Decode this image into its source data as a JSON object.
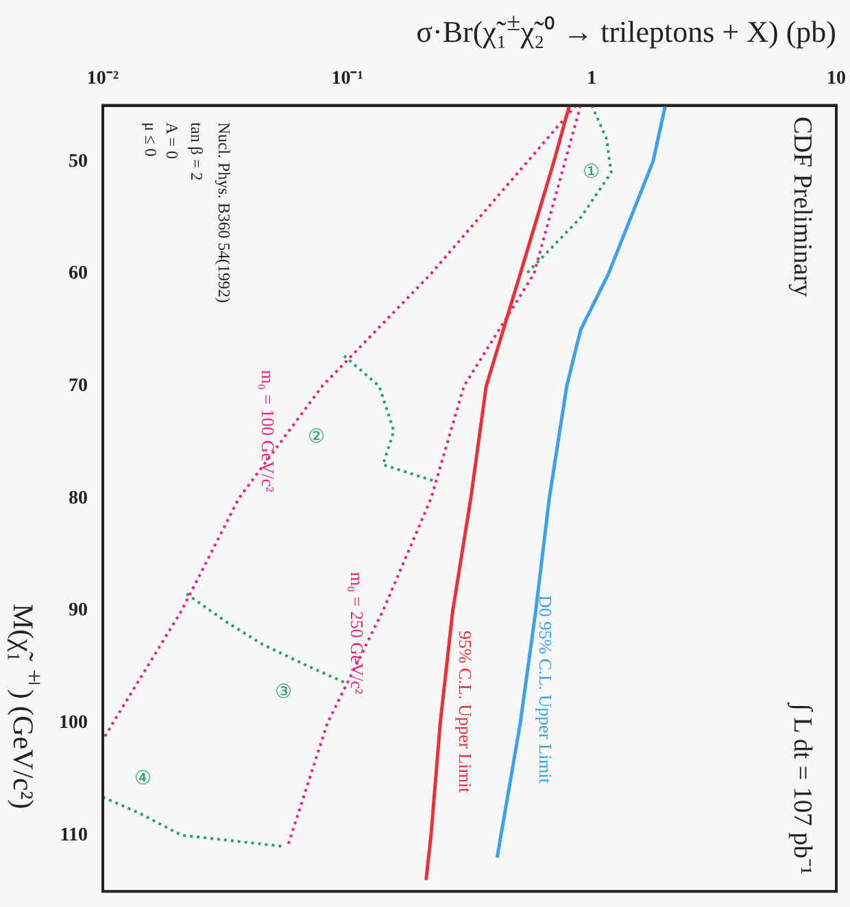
{
  "chart_data": {
    "type": "line",
    "xlabel": "σ·Br(χ̃₁$^{±}$χ̃₂⁰ → trileptons + X) (pb)",
    "ylabel": "M(χ̃₁$^{±}$) (GeV/c²)",
    "xlim": [
      0.01,
      10
    ],
    "xticks": [
      {
        "value": 0.01,
        "label": "10⁻²"
      },
      {
        "value": 0.1,
        "label": "10⁻¹"
      },
      1,
      10
    ],
    "ylim": [
      115,
      45
    ],
    "yticks": [
      50,
      60,
      70,
      80,
      90,
      100,
      110
    ],
    "log": "x",
    "grid": false,
    "legend": false,
    "series": [
      {
        "name": "95% C.L. Upper Limit",
        "color": "#e8313a",
        "line_style": "solid",
        "x": [
          0.81,
          0.7,
          0.51,
          0.37,
          0.32,
          0.27,
          0.24,
          0.22,
          0.21
        ],
        "values": [
          45,
          50,
          60,
          70,
          80,
          90,
          100,
          110,
          114
        ]
      },
      {
        "name": "D0 95% C.L. Upper Limit",
        "color": "#3ea0e8",
        "line_style": "solid",
        "x": [
          2.0,
          1.78,
          1.17,
          0.9,
          0.79,
          0.67,
          0.59,
          0.51,
          0.41
        ],
        "values": [
          45,
          50,
          60,
          65,
          70,
          80,
          90,
          100,
          112
        ]
      },
      {
        "name": "m₀ = 100 GeV/c²",
        "color": "#e8247f",
        "line_style": "dotted",
        "x": [
          0.86,
          0.22,
          0.079,
          0.036,
          0.021,
          0.011,
          0.01
        ],
        "values": [
          45,
          60,
          70,
          80,
          90,
          100,
          101.5
        ]
      },
      {
        "name": "m₀ = 250 GeV/c²",
        "color": "#e8247f",
        "line_style": "dotted",
        "x": [
          0.9,
          0.58,
          0.3,
          0.22,
          0.14,
          0.083,
          0.057
        ],
        "values": [
          45,
          60,
          70,
          80,
          90,
          100,
          111
        ]
      },
      {
        "color": "#2e9e6a",
        "line_style": "dotted",
        "x": [
          1.0,
          1.15,
          1.2,
          0.9,
          0.54
        ],
        "values": [
          45,
          48,
          51,
          55,
          60
        ]
      },
      {
        "color": "#2e9e6a",
        "line_style": "dotted",
        "x": [
          0.097,
          0.135,
          0.155,
          0.14,
          0.23
        ],
        "values": [
          67.3,
          70,
          74,
          77,
          78.5
        ]
      },
      {
        "color": "#2e9e6a",
        "line_style": "dotted",
        "x": [
          0.022,
          0.032,
          0.045,
          0.07,
          0.1
        ],
        "values": [
          88.5,
          91,
          93,
          95,
          96.5
        ]
      },
      {
        "color": "#2e9e6a",
        "line_style": "dotted",
        "x": [
          0.01,
          0.014,
          0.021,
          0.055
        ],
        "values": [
          106.6,
          108,
          110,
          111
        ]
      }
    ],
    "annotations": [
      "CDF Preliminary",
      "∫ L dt = 107 pb⁻¹",
      "Nucl. Phys. B360 54(1992)",
      "tan β = 2",
      "A = 0",
      "μ ≤ 0",
      "①",
      "②",
      "③",
      "④"
    ]
  }
}
